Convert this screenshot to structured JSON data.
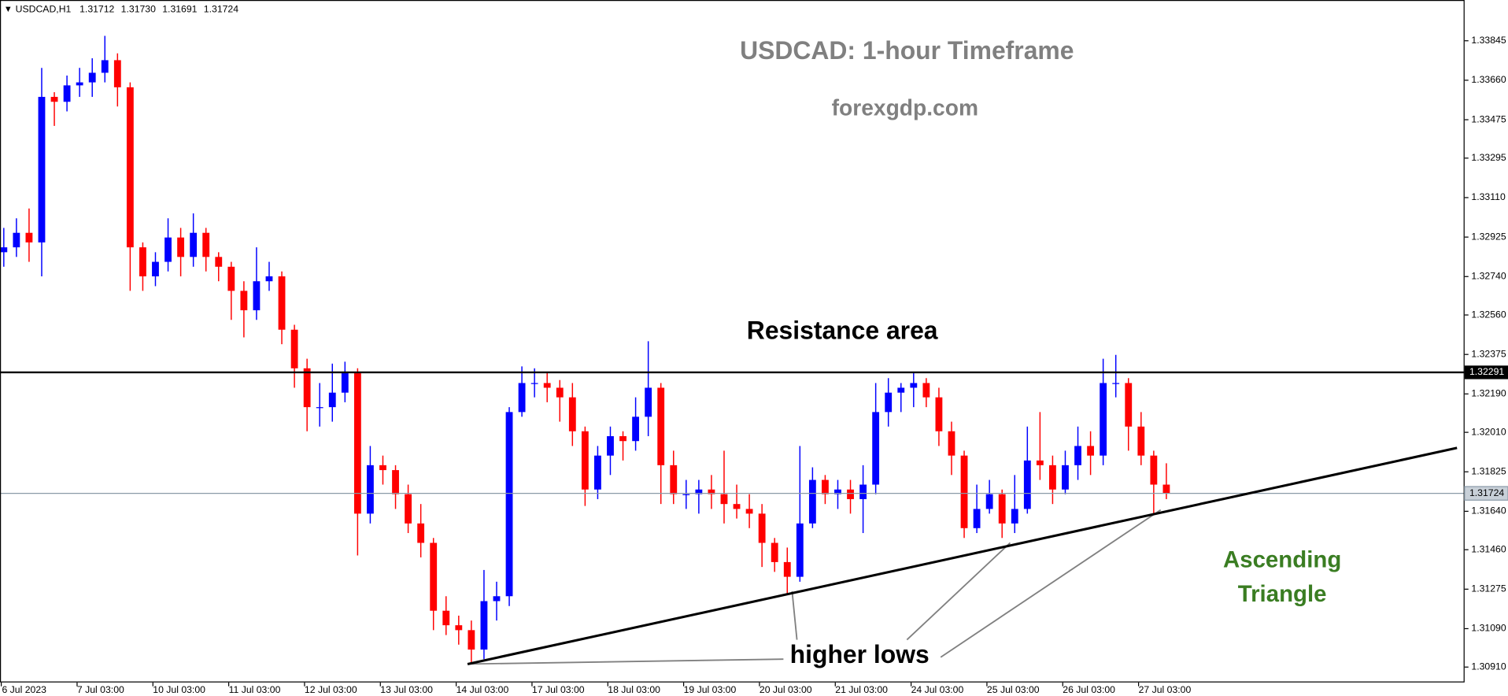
{
  "chart_data": {
    "type": "candlestick",
    "symbol": "USDCAD,H1",
    "header_prices": [
      "1.31712",
      "1.31730",
      "1.31691",
      "1.31724"
    ],
    "title": "USDCAD: 1-hour Timeframe",
    "subtitle": "forexgdp.com",
    "annotations": {
      "resistance": "Resistance area",
      "pattern": [
        "Ascending",
        "Triangle"
      ],
      "lows": "higher lows"
    },
    "up_color": "#0000ff",
    "down_color": "#ff0000",
    "open": [
      1.32854,
      1.32877,
      1.32945,
      1.329,
      1.33582,
      1.33559,
      1.33636,
      1.3365,
      1.33695,
      1.33754,
      1.33627,
      1.32877,
      1.32741,
      1.32809,
      1.32923,
      1.32832,
      1.32945,
      1.32832,
      1.32786,
      1.32673,
      1.32582,
      1.32718,
      1.32741,
      1.32491,
      1.3231,
      1.32128,
      1.32128,
      1.32196,
      1.32287,
      1.31629,
      1.31856,
      1.31833,
      1.3172,
      1.31583,
      1.31492,
      1.31174,
      1.31106,
      1.31083,
      1.30992,
      1.31219,
      1.31242,
      1.32105,
      1.32241,
      1.32241,
      1.32219,
      1.32174,
      1.32015,
      1.31742,
      1.31901,
      1.31992,
      1.31969,
      1.32083,
      1.32219,
      1.31856,
      1.3172,
      1.3172,
      1.31742,
      1.3172,
      1.31674,
      1.31651,
      1.31629,
      1.31492,
      1.31402,
      1.31333,
      1.31583,
      1.31787,
      1.3172,
      1.31742,
      1.31697,
      1.31765,
      1.32105,
      1.32196,
      1.32219,
      1.32241,
      1.32174,
      1.32015,
      1.31901,
      1.31561,
      1.31651,
      1.3172,
      1.31583,
      1.31651,
      1.31878,
      1.31856,
      1.31742,
      1.31856,
      1.31946,
      1.31901,
      1.32241,
      1.32241,
      1.32037,
      1.31901,
      1.31765
    ],
    "high": [
      1.32968,
      1.33013,
      1.33059,
      1.33718,
      1.33604,
      1.33682,
      1.33718,
      1.33763,
      1.33868,
      1.33786,
      1.3365,
      1.329,
      1.32854,
      1.33013,
      1.32968,
      1.33036,
      1.32968,
      1.32854,
      1.32809,
      1.32718,
      1.32877,
      1.32809,
      1.32764,
      1.32514,
      1.32355,
      1.32241,
      1.32332,
      1.32341,
      1.3231,
      1.31946,
      1.31901,
      1.31856,
      1.31765,
      1.31674,
      1.31515,
      1.31242,
      1.31151,
      1.31128,
      1.31365,
      1.3131,
      1.32128,
      1.32319,
      1.3231,
      1.32287,
      1.32255,
      1.32241,
      1.32037,
      1.31946,
      1.32037,
      1.32015,
      1.32174,
      1.32437,
      1.32241,
      1.31924,
      1.31787,
      1.31787,
      1.3181,
      1.31924,
      1.31765,
      1.3172,
      1.31674,
      1.31515,
      1.3147,
      1.31946,
      1.31846,
      1.3181,
      1.31787,
      1.31787,
      1.31856,
      1.32241,
      1.32264,
      1.32241,
      1.32287,
      1.32264,
      1.32219,
      1.3206,
      1.31924,
      1.31765,
      1.31787,
      1.31742,
      1.3181,
      1.32037,
      1.32105,
      1.31901,
      1.31924,
      1.32037,
      1.32015,
      1.32355,
      1.32373,
      1.32264,
      1.32105,
      1.31924,
      1.31865
    ],
    "low": [
      1.32786,
      1.32832,
      1.32809,
      1.32741,
      1.33446,
      1.33514,
      1.33582,
      1.33582,
      1.3365,
      1.33537,
      1.32673,
      1.32673,
      1.32695,
      1.32764,
      1.32741,
      1.32786,
      1.32764,
      1.32718,
      1.32537,
      1.32455,
      1.32537,
      1.32673,
      1.32423,
      1.32219,
      1.32015,
      1.32037,
      1.3206,
      1.32151,
      1.31433,
      1.31583,
      1.31765,
      1.31651,
      1.31538,
      1.31424,
      1.31083,
      1.3106,
      1.31015,
      1.30924,
      1.30947,
      1.31128,
      1.31196,
      1.32083,
      1.32174,
      1.32151,
      1.3206,
      1.31946,
      1.31665,
      1.31697,
      1.3181,
      1.31878,
      1.31924,
      1.31992,
      1.31674,
      1.31674,
      1.31651,
      1.31629,
      1.31651,
      1.31583,
      1.31606,
      1.31561,
      1.31379,
      1.31356,
      1.31255,
      1.3131,
      1.31561,
      1.31674,
      1.31651,
      1.31629,
      1.31538,
      1.3172,
      1.32037,
      1.32105,
      1.32128,
      1.32128,
      1.31946,
      1.3181,
      1.31515,
      1.31538,
      1.31629,
      1.31515,
      1.31538,
      1.31629,
      1.31787,
      1.31674,
      1.3172,
      1.31787,
      1.3181,
      1.31856,
      1.32174,
      1.31924,
      1.31856,
      1.31629,
      1.31697
    ],
    "close": [
      1.32877,
      1.32945,
      1.329,
      1.33582,
      1.33559,
      1.33636,
      1.3365,
      1.33695,
      1.33754,
      1.33627,
      1.32877,
      1.32741,
      1.32809,
      1.32923,
      1.32832,
      1.32945,
      1.32832,
      1.32786,
      1.32673,
      1.32582,
      1.32718,
      1.32741,
      1.32491,
      1.3231,
      1.32128,
      1.32128,
      1.32196,
      1.32287,
      1.31629,
      1.31856,
      1.31833,
      1.3172,
      1.31583,
      1.31492,
      1.31174,
      1.31106,
      1.31083,
      1.30992,
      1.31219,
      1.31242,
      1.32105,
      1.32241,
      1.32241,
      1.32219,
      1.32174,
      1.32015,
      1.31742,
      1.31901,
      1.31992,
      1.31969,
      1.32083,
      1.32219,
      1.31856,
      1.3172,
      1.3172,
      1.31742,
      1.3172,
      1.31674,
      1.31651,
      1.31629,
      1.31492,
      1.31402,
      1.31333,
      1.31583,
      1.31787,
      1.3172,
      1.31742,
      1.31697,
      1.31765,
      1.32105,
      1.32196,
      1.32219,
      1.32241,
      1.32174,
      1.32015,
      1.31901,
      1.31561,
      1.31651,
      1.3172,
      1.31583,
      1.31651,
      1.31878,
      1.31856,
      1.31742,
      1.31856,
      1.31946,
      1.31901,
      1.32241,
      1.32241,
      1.32037,
      1.31901,
      1.31765,
      1.31724
    ],
    "resistance": 1.32291,
    "last_price": 1.31724,
    "trendline": {
      "x": [
        36.7,
        115
      ],
      "y": [
        1.30924,
        1.31937
      ]
    },
    "xlim": [
      -0.3,
      115.6
    ],
    "xticks": [
      {
        "value": -0.2,
        "label": "6 Jul 2023"
      },
      {
        "value": 5.8,
        "label": "7 Jul 03:00"
      },
      {
        "value": 11.8,
        "label": "10 Jul 03:00"
      },
      {
        "value": 17.8,
        "label": "11 Jul 03:00"
      },
      {
        "value": 23.8,
        "label": "12 Jul 03:00"
      },
      {
        "value": 29.8,
        "label": "13 Jul 03:00"
      },
      {
        "value": 35.8,
        "label": "14 Jul 03:00"
      },
      {
        "value": 41.8,
        "label": "17 Jul 03:00"
      },
      {
        "value": 47.8,
        "label": "18 Jul 03:00"
      },
      {
        "value": 53.8,
        "label": "19 Jul 03:00"
      },
      {
        "value": 59.8,
        "label": "20 Jul 03:00"
      },
      {
        "value": 65.8,
        "label": "21 Jul 03:00"
      },
      {
        "value": 71.8,
        "label": "24 Jul 03:00"
      },
      {
        "value": 77.8,
        "label": "25 Jul 03:00"
      },
      {
        "value": 83.8,
        "label": "26 Jul 03:00"
      },
      {
        "value": 89.8,
        "label": "27 Jul 03:00"
      }
    ],
    "ylim": [
      1.30838,
      1.34036
    ],
    "yticks": [
      1.33845,
      {
        "value": 1.3366,
        "label": "1.33660"
      },
      1.33475,
      1.33295,
      {
        "value": 1.3311,
        "label": "1.33110"
      },
      1.32925,
      {
        "value": 1.3274,
        "label": "1.32740"
      },
      {
        "value": 1.3256,
        "label": "1.32560"
      },
      1.32375,
      {
        "value": 1.3219,
        "label": "1.32190"
      },
      {
        "value": 1.3201,
        "label": "1.32010"
      },
      1.31825,
      {
        "value": 1.3164,
        "label": "1.31640"
      },
      {
        "value": 1.3146,
        "label": "1.31460"
      },
      1.31275,
      {
        "value": 1.3109,
        "label": "1.31090"
      },
      {
        "value": 1.3091,
        "label": "1.30910"
      }
    ],
    "grid": false
  }
}
